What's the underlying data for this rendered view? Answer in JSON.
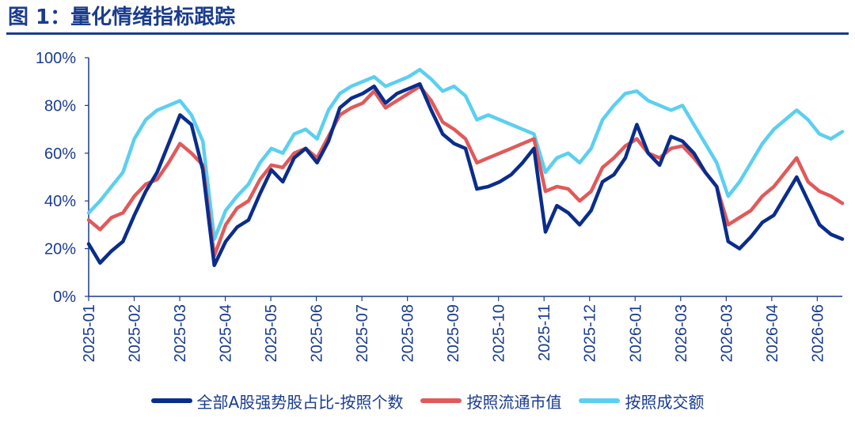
{
  "title": "图 1：量化情绪指标跟踪",
  "colors": {
    "title": "#1a3c8c",
    "axis": "#1a3c8c",
    "series": [
      "#0a2d8c",
      "#e05a5a",
      "#5ccff0"
    ]
  },
  "chart_data": {
    "type": "line",
    "title": "图 1：量化情绪指标跟踪",
    "xlabel": "",
    "ylabel": "",
    "ylim": [
      0,
      100
    ],
    "ytick_unit": "%",
    "yticks": [
      "0%",
      "20%",
      "40%",
      "60%",
      "80%",
      "100%"
    ],
    "xticks": [
      "2025-01",
      "2025-02",
      "2025-03",
      "2025-04",
      "2025-05",
      "2025-06",
      "2025-07",
      "2025-08",
      "2025-09",
      "2025-10",
      "2025-11",
      "2025-12",
      "2026-01",
      "2026-03",
      "2026-03",
      "2026-04",
      "2026-06"
    ],
    "grid": false,
    "legend_position": "bottom",
    "x": [
      "2025-01",
      "2025-01",
      "2025-01",
      "2025-01",
      "2025-02",
      "2025-02",
      "2025-02",
      "2025-02",
      "2025-03",
      "2025-03",
      "2025-03",
      "2025-03",
      "2025-04",
      "2025-04",
      "2025-04",
      "2025-04",
      "2025-05",
      "2025-05",
      "2025-05",
      "2025-05",
      "2025-06",
      "2025-06",
      "2025-06",
      "2025-06",
      "2025-07",
      "2025-07",
      "2025-07",
      "2025-07",
      "2025-08",
      "2025-08",
      "2025-08",
      "2025-08",
      "2025-09",
      "2025-09",
      "2025-09",
      "2025-09",
      "2025-10",
      "2025-10",
      "2025-10",
      "2025-10",
      "2025-11",
      "2025-11",
      "2025-11",
      "2025-11",
      "2025-12",
      "2025-12",
      "2025-12",
      "2025-12",
      "2026-01",
      "2026-01",
      "2026-01",
      "2026-01",
      "2026-02",
      "2026-02",
      "2026-02",
      "2026-02",
      "2026-03",
      "2026-03",
      "2026-03",
      "2026-03",
      "2026-04",
      "2026-04",
      "2026-04",
      "2026-04",
      "2026-05",
      "2026-05",
      "2026-05"
    ],
    "series": [
      {
        "name": "全部A股强势股占比-按照个数",
        "values": [
          22,
          14,
          19,
          23,
          34,
          44,
          52,
          64,
          76,
          72,
          53,
          13,
          23,
          29,
          32,
          43,
          53,
          48,
          58,
          62,
          56,
          65,
          79,
          83,
          85,
          88,
          81,
          85,
          87,
          89,
          78,
          68,
          64,
          62,
          45,
          46,
          48,
          51,
          56,
          62,
          27,
          38,
          35,
          30,
          36,
          48,
          51,
          58,
          72,
          60,
          55,
          67,
          65,
          60,
          52,
          46,
          23,
          20,
          25,
          31,
          34,
          42,
          50,
          40,
          30,
          26,
          24
        ]
      },
      {
        "name": "按照流通市值",
        "values": [
          32,
          28,
          33,
          35,
          42,
          47,
          49,
          56,
          64,
          60,
          55,
          17,
          30,
          37,
          40,
          49,
          55,
          54,
          60,
          62,
          58,
          67,
          76,
          79,
          81,
          86,
          79,
          82,
          85,
          88,
          82,
          73,
          70,
          66,
          56,
          58,
          60,
          62,
          64,
          66,
          44,
          46,
          45,
          40,
          44,
          54,
          58,
          63,
          66,
          60,
          58,
          62,
          63,
          58,
          52,
          46,
          30,
          33,
          36,
          42,
          46,
          52,
          58,
          48,
          44,
          42,
          39
        ]
      },
      {
        "name": "按照成交额",
        "values": [
          35,
          40,
          46,
          52,
          66,
          74,
          78,
          80,
          82,
          76,
          65,
          24,
          36,
          42,
          47,
          56,
          62,
          60,
          68,
          70,
          66,
          78,
          85,
          88,
          90,
          92,
          88,
          90,
          92,
          95,
          91,
          86,
          88,
          84,
          74,
          76,
          74,
          72,
          70,
          68,
          52,
          58,
          60,
          56,
          62,
          74,
          80,
          85,
          86,
          82,
          80,
          78,
          80,
          72,
          64,
          56,
          42,
          48,
          56,
          64,
          70,
          74,
          78,
          74,
          68,
          66,
          69
        ]
      }
    ]
  }
}
